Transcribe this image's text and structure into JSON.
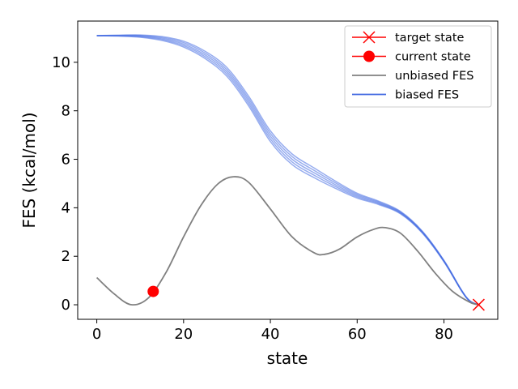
{
  "chart_data": {
    "type": "line",
    "xlabel": "state",
    "ylabel": "FES (kcal/mol)",
    "xlim": [
      -4.4,
      92.4
    ],
    "ylim": [
      -0.6,
      11.7
    ],
    "x_ticks": [
      0,
      20,
      40,
      60,
      80
    ],
    "y_ticks": [
      0,
      2,
      4,
      6,
      8,
      10
    ],
    "x_tick_labels": [
      "0",
      "20",
      "40",
      "60",
      "80"
    ],
    "y_tick_labels": [
      "0",
      "2",
      "4",
      "6",
      "8",
      "10"
    ],
    "grid": false,
    "legend_position": "upper-right",
    "legend": [
      {
        "label": "target state",
        "color": "#ff0000",
        "marker": "x"
      },
      {
        "label": "current state",
        "color": "#ff0000",
        "marker": "o"
      },
      {
        "label": "unbiased FES",
        "color": "#808080",
        "marker": "line"
      },
      {
        "label": "biased FES",
        "color": "#4169e1",
        "marker": "line"
      }
    ],
    "series": [
      {
        "name": "unbiased FES",
        "color": "#808080",
        "x": [
          0,
          4,
          8,
          12,
          16,
          20,
          24,
          28,
          31.5,
          35,
          40,
          45,
          50,
          52.5,
          56,
          60,
          64,
          66.5,
          70,
          74,
          78,
          82,
          86,
          88
        ],
        "y": [
          1.12,
          0.45,
          0.0,
          0.3,
          1.35,
          2.8,
          4.1,
          5.0,
          5.28,
          5.05,
          3.95,
          2.8,
          2.15,
          2.08,
          2.3,
          2.8,
          3.12,
          3.18,
          2.95,
          2.2,
          1.3,
          0.55,
          0.1,
          0.0
        ]
      },
      {
        "name": "biased FES",
        "color": "#4169e1",
        "x": [
          0,
          5,
          10,
          15,
          20,
          25,
          30,
          35,
          40,
          45,
          50,
          55,
          60,
          65,
          70,
          75,
          80,
          84,
          86,
          88
        ],
        "y": [
          11.1,
          11.1,
          11.08,
          10.98,
          10.75,
          10.3,
          9.6,
          8.4,
          6.95,
          6.0,
          5.45,
          4.95,
          4.5,
          4.2,
          3.8,
          3.0,
          1.8,
          0.6,
          0.15,
          0.0
        ]
      }
    ],
    "biased_spread": [
      0.0,
      0.02,
      0.05,
      0.08,
      0.12,
      0.15,
      0.18,
      0.2,
      0.22,
      0.22,
      0.2,
      0.15,
      0.1,
      0.07,
      0.05,
      0.04,
      0.03,
      0.02,
      0.01,
      0.0
    ],
    "target_state": {
      "x": 88,
      "y": 0.0
    },
    "current_state": {
      "x": 13,
      "y": 0.55
    }
  }
}
